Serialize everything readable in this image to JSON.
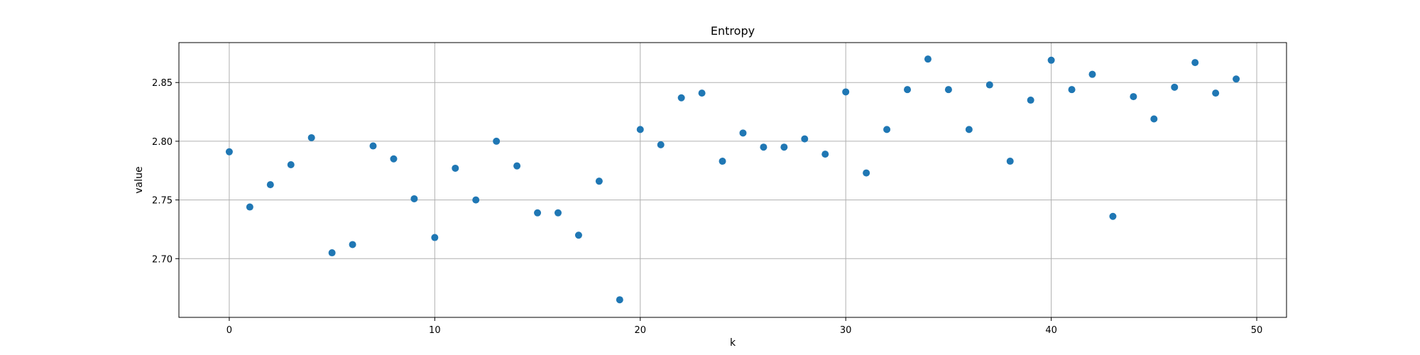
{
  "chart_data": {
    "type": "scatter",
    "title": "Entropy",
    "xlabel": "k",
    "ylabel": "value",
    "xlim": [
      -2.45,
      51.45
    ],
    "ylim": [
      2.65,
      2.884
    ],
    "xticks": [
      0,
      10,
      20,
      30,
      40,
      50
    ],
    "yticks": [
      2.7,
      2.75,
      2.8,
      2.85
    ],
    "ytick_labels": [
      "2.70",
      "2.75",
      "2.80",
      "2.85"
    ],
    "grid": true,
    "color": "#1f77b4",
    "series": [
      {
        "x": [
          0,
          1,
          2,
          3,
          4,
          5,
          6,
          7,
          8,
          9,
          10,
          11,
          12,
          13,
          14,
          15,
          16,
          17,
          18,
          19,
          20,
          21,
          22,
          23,
          24,
          25,
          26,
          27,
          28,
          29,
          30,
          31,
          32,
          33,
          34,
          35,
          36,
          37,
          38,
          39,
          40,
          41,
          42,
          43,
          44,
          45,
          46,
          47,
          48,
          49
        ],
        "y": [
          2.791,
          2.744,
          2.763,
          2.78,
          2.803,
          2.705,
          2.712,
          2.796,
          2.785,
          2.751,
          2.718,
          2.777,
          2.75,
          2.8,
          2.779,
          2.739,
          2.739,
          2.72,
          2.766,
          2.665,
          2.81,
          2.797,
          2.837,
          2.841,
          2.783,
          2.807,
          2.795,
          2.795,
          2.802,
          2.789,
          2.842,
          2.773,
          2.81,
          2.844,
          2.87,
          2.844,
          2.81,
          2.848,
          2.783,
          2.835,
          2.869,
          2.844,
          2.857,
          2.736,
          2.838,
          2.819,
          2.846,
          2.867,
          2.841,
          2.853
        ]
      }
    ]
  }
}
